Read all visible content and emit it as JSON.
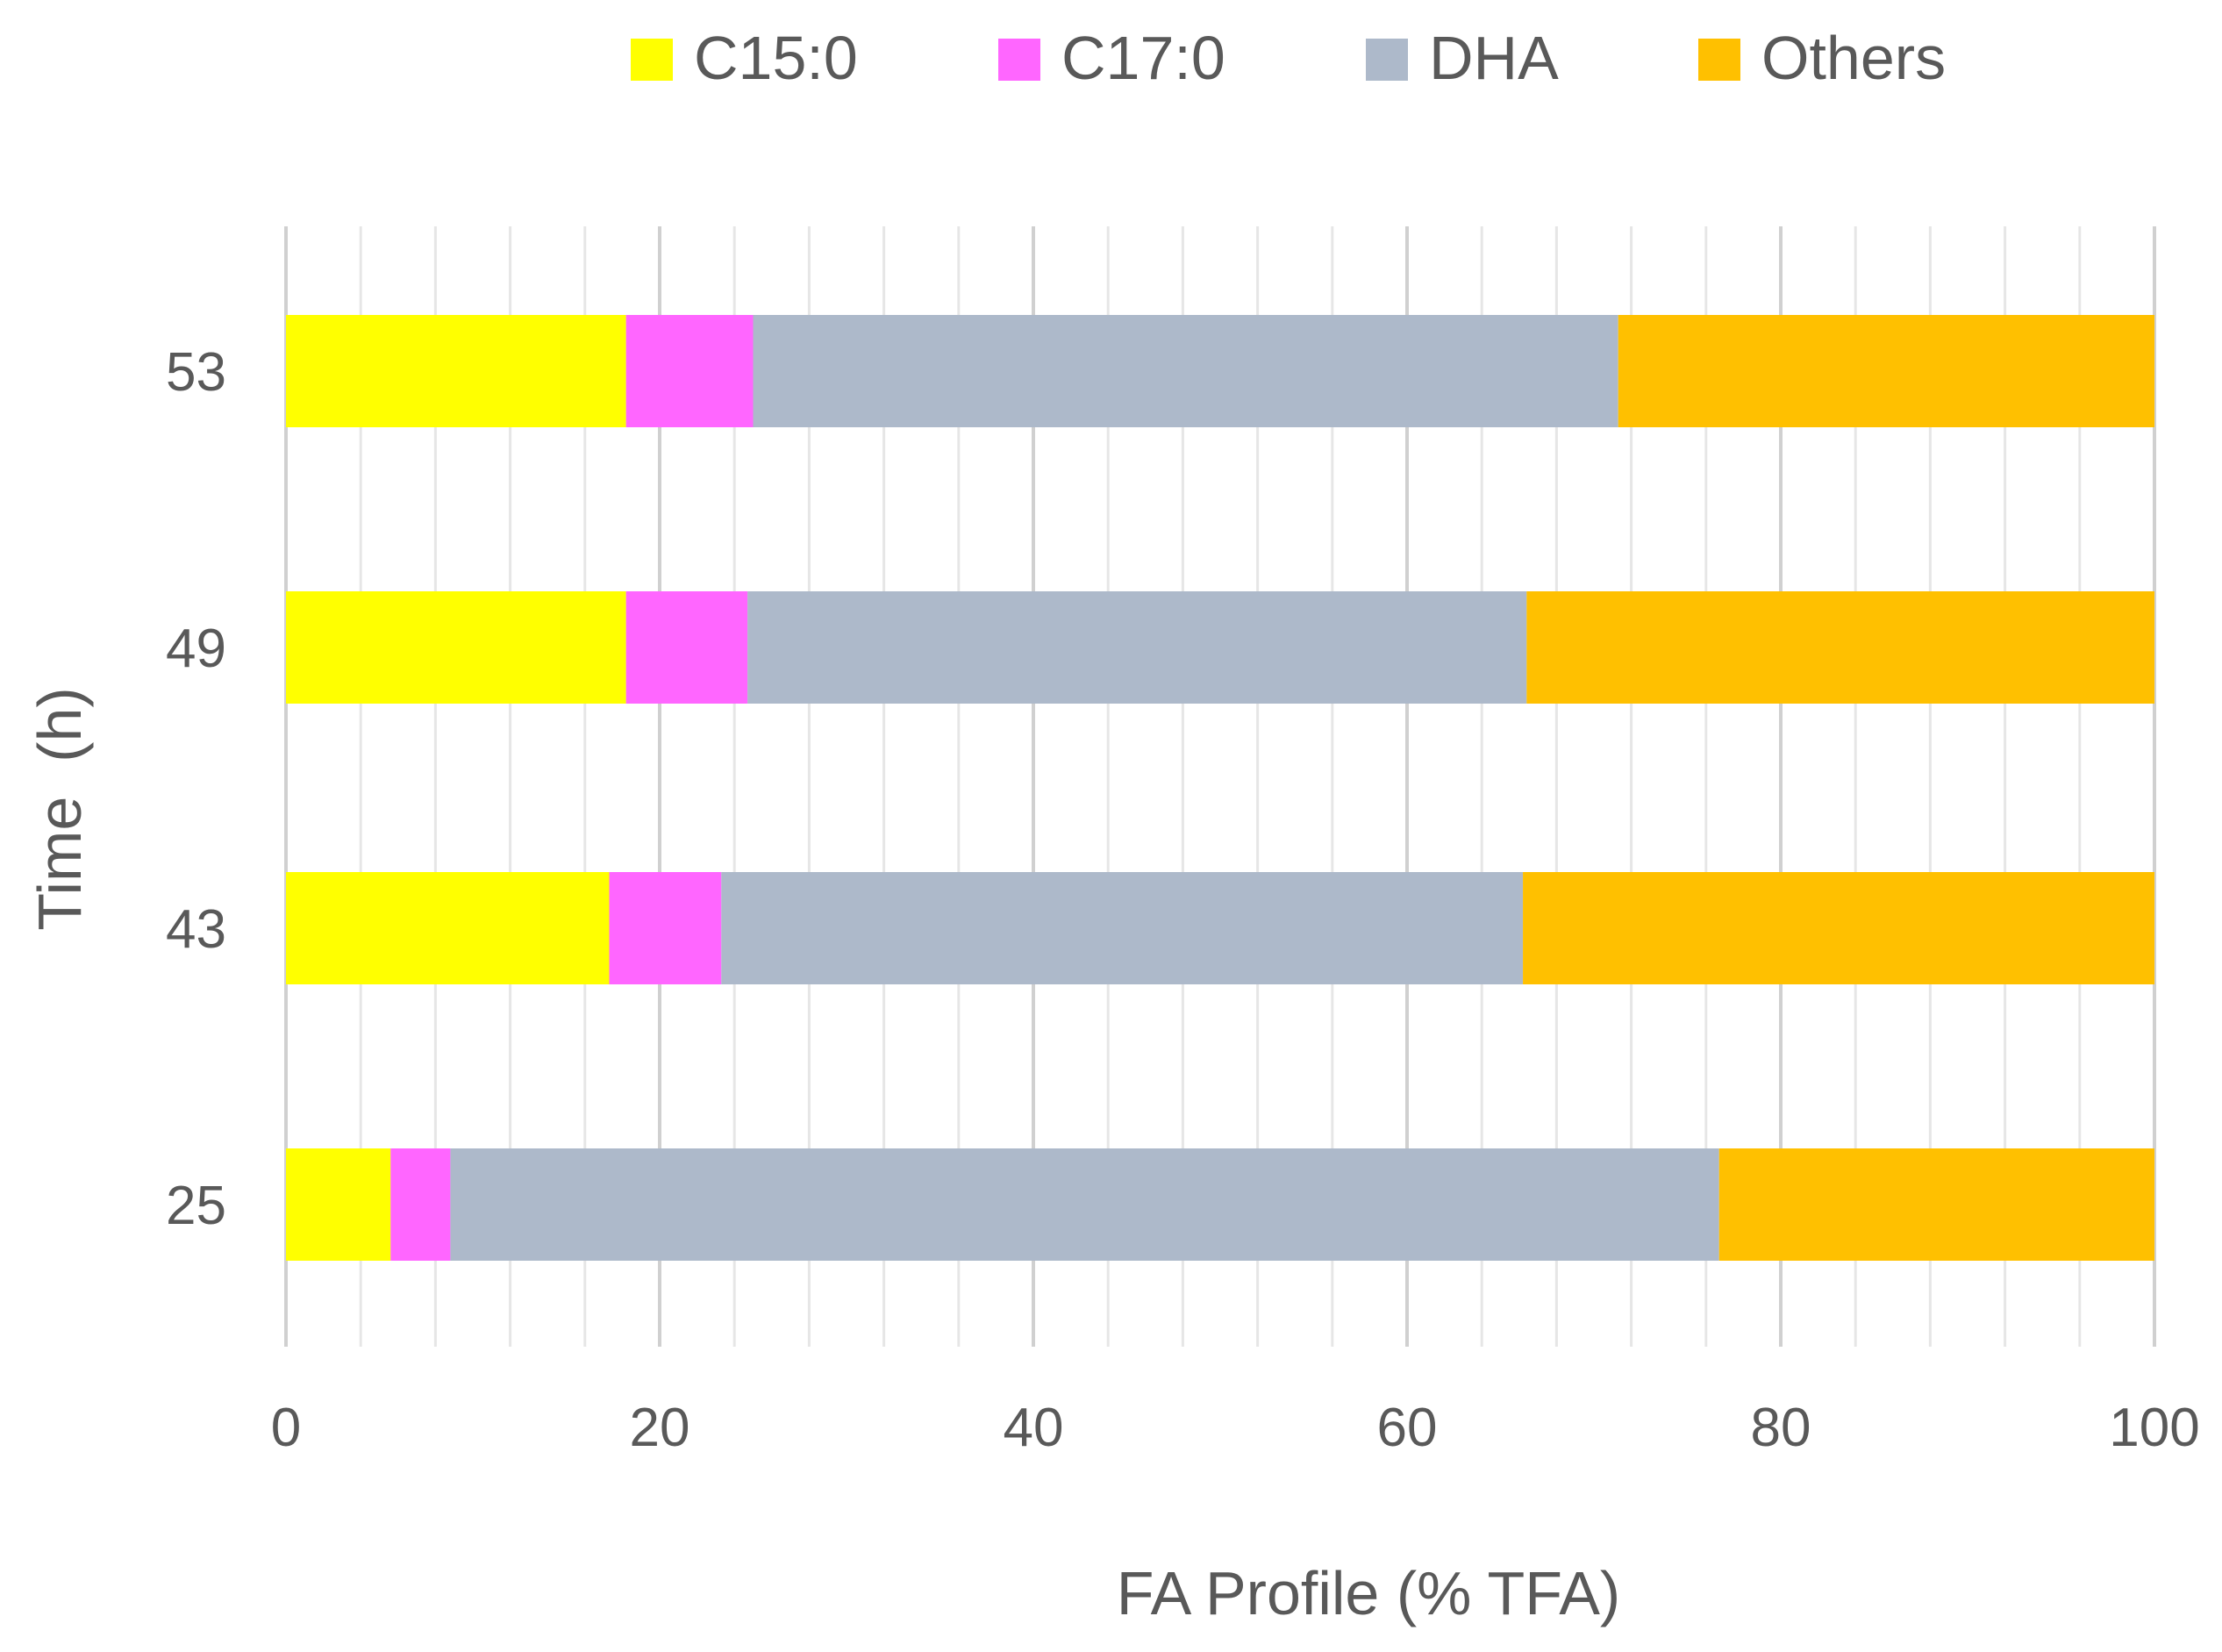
{
  "chart_data": {
    "type": "bar",
    "orientation": "horizontal",
    "stacked": true,
    "categories": [
      "25",
      "43",
      "49",
      "53"
    ],
    "series": [
      {
        "name": "C15:0",
        "color": "#FFFF00",
        "values": [
          5.6,
          17.3,
          18.2,
          18.2
        ]
      },
      {
        "name": "C17:0",
        "color": "#FF66FF",
        "values": [
          3.2,
          6.0,
          6.5,
          6.8
        ]
      },
      {
        "name": "DHA",
        "color": "#ADB9CA",
        "values": [
          67.9,
          42.9,
          41.7,
          46.3
        ]
      },
      {
        "name": "Others",
        "color": "#FFC000",
        "values": [
          23.3,
          33.8,
          33.6,
          28.7
        ]
      }
    ],
    "xlabel": "FA Profile (% TFA)",
    "ylabel": "Time  (h)",
    "xlim": [
      0,
      100
    ],
    "xticks": [
      "0",
      "20",
      "40",
      "60",
      "80",
      "100"
    ],
    "grid": true,
    "legend_position": "top"
  }
}
